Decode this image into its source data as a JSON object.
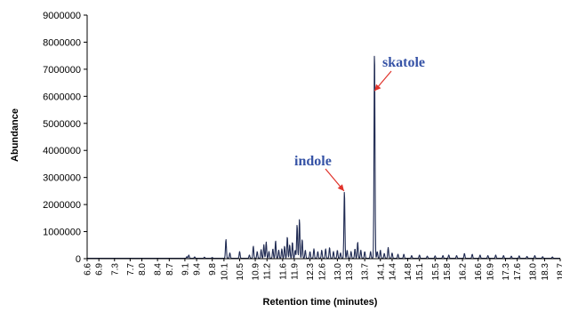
{
  "chart_data": {
    "type": "line",
    "xlabel": "Retention time (minutes)",
    "ylabel": "Abundance",
    "xlim": [
      6.6,
      18.7
    ],
    "ylim": [
      0,
      9000000
    ],
    "y_ticks": [
      "0",
      "1000000",
      "2000000",
      "3000000",
      "4000000",
      "5000000",
      "6000000",
      "7000000",
      "8000000",
      "9000000"
    ],
    "y_tick_values": [
      0,
      1000000,
      2000000,
      3000000,
      4000000,
      5000000,
      6000000,
      7000000,
      8000000,
      9000000
    ],
    "x_ticks": [
      "6.6",
      "6.9",
      "7.3",
      "7.7",
      "8.0",
      "8.4",
      "8.7",
      "9.1",
      "9.4",
      "9.8",
      "10.1",
      "10.5",
      "10.9",
      "11.2",
      "11.6",
      "11.9",
      "12.3",
      "12.6",
      "13.0",
      "13.3",
      "13.7",
      "14.1",
      "14.4",
      "14.8",
      "15.1",
      "15.5",
      "15.8",
      "16.2",
      "16.6",
      "16.9",
      "17.3",
      "17.6",
      "18.0",
      "18.3",
      "18.7"
    ],
    "x_tick_values": [
      6.6,
      6.9,
      7.3,
      7.7,
      8.0,
      8.4,
      8.7,
      9.1,
      9.4,
      9.8,
      10.1,
      10.5,
      10.9,
      11.2,
      11.6,
      11.9,
      12.3,
      12.6,
      13.0,
      13.3,
      13.7,
      14.1,
      14.4,
      14.8,
      15.1,
      15.5,
      15.8,
      16.2,
      16.6,
      16.9,
      17.3,
      17.6,
      18.0,
      18.3,
      18.7
    ],
    "grid": false,
    "legend": "none",
    "line_color": "#1f2a52",
    "series": [
      {
        "peaks": [
          [
            9.15,
            60000
          ],
          [
            9.2,
            120000
          ],
          [
            9.35,
            50000
          ],
          [
            9.6,
            40000
          ],
          [
            9.8,
            30000
          ],
          [
            10.15,
            700000
          ],
          [
            10.25,
            200000
          ],
          [
            10.5,
            250000
          ],
          [
            10.75,
            120000
          ],
          [
            10.85,
            450000
          ],
          [
            10.95,
            250000
          ],
          [
            11.05,
            320000
          ],
          [
            11.12,
            500000
          ],
          [
            11.18,
            600000
          ],
          [
            11.25,
            250000
          ],
          [
            11.35,
            350000
          ],
          [
            11.42,
            650000
          ],
          [
            11.5,
            300000
          ],
          [
            11.58,
            350000
          ],
          [
            11.65,
            450000
          ],
          [
            11.72,
            800000
          ],
          [
            11.78,
            500000
          ],
          [
            11.85,
            600000
          ],
          [
            11.92,
            300000
          ],
          [
            11.97,
            1250000
          ],
          [
            12.03,
            1450000
          ],
          [
            12.1,
            700000
          ],
          [
            12.18,
            300000
          ],
          [
            12.3,
            250000
          ],
          [
            12.4,
            350000
          ],
          [
            12.5,
            250000
          ],
          [
            12.6,
            300000
          ],
          [
            12.7,
            350000
          ],
          [
            12.8,
            400000
          ],
          [
            12.9,
            250000
          ],
          [
            13.0,
            300000
          ],
          [
            13.08,
            200000
          ],
          [
            13.18,
            2500000
          ],
          [
            13.25,
            300000
          ],
          [
            13.35,
            250000
          ],
          [
            13.45,
            350000
          ],
          [
            13.52,
            600000
          ],
          [
            13.6,
            300000
          ],
          [
            13.7,
            250000
          ],
          [
            13.85,
            250000
          ],
          [
            13.95,
            7800000
          ],
          [
            14.02,
            250000
          ],
          [
            14.1,
            300000
          ],
          [
            14.2,
            180000
          ],
          [
            14.3,
            400000
          ],
          [
            14.4,
            200000
          ],
          [
            14.55,
            150000
          ],
          [
            14.7,
            150000
          ],
          [
            14.9,
            100000
          ],
          [
            15.1,
            120000
          ],
          [
            15.3,
            80000
          ],
          [
            15.5,
            90000
          ],
          [
            15.7,
            100000
          ],
          [
            15.85,
            120000
          ],
          [
            16.05,
            100000
          ],
          [
            16.25,
            180000
          ],
          [
            16.45,
            150000
          ],
          [
            16.65,
            120000
          ],
          [
            16.85,
            100000
          ],
          [
            17.05,
            120000
          ],
          [
            17.25,
            100000
          ],
          [
            17.45,
            80000
          ],
          [
            17.65,
            90000
          ],
          [
            17.85,
            70000
          ],
          [
            18.05,
            100000
          ],
          [
            18.25,
            60000
          ],
          [
            18.5,
            50000
          ]
        ]
      }
    ],
    "annotations": [
      {
        "text": "indole",
        "color": "#3653a6",
        "arrow_color": "#e0332b",
        "target_x": 13.17,
        "target_y": 2500000
      },
      {
        "text": "skatole",
        "color": "#3653a6",
        "arrow_color": "#e0332b",
        "target_x": 13.95,
        "target_y": 6200000
      }
    ]
  }
}
